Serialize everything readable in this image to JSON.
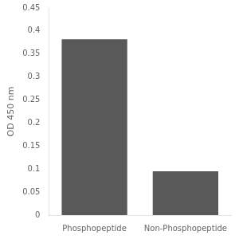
{
  "chart_data": {
    "type": "bar",
    "categories": [
      "Phosphopeptide",
      "Non-Phosphopeptide"
    ],
    "values": [
      0.382,
      0.095
    ],
    "color": "#595959",
    "ylabel": "OD 450 nm",
    "ylim": [
      0,
      0.45
    ],
    "yticks": [
      0,
      0.05,
      0.1,
      0.15,
      0.2,
      0.25,
      0.3,
      0.35,
      0.4,
      0.45
    ],
    "grid": false
  }
}
